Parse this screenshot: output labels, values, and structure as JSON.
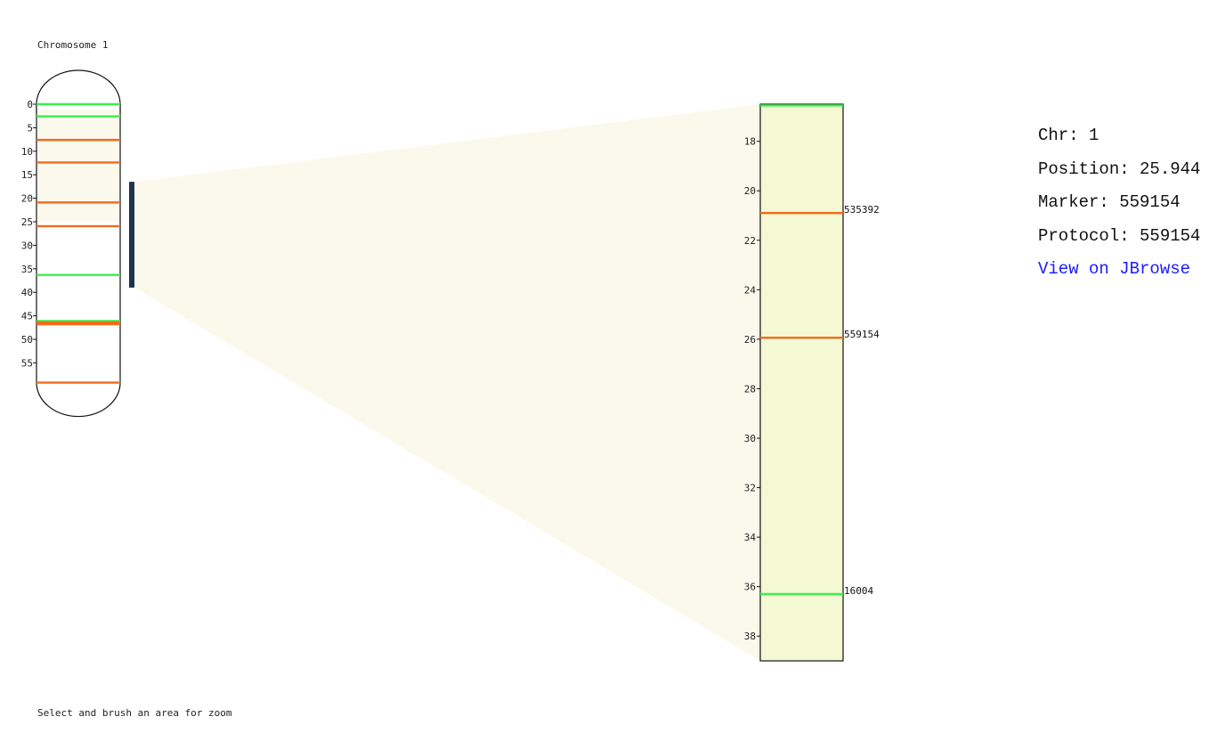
{
  "chromosome": {
    "title": "Chromosome 1"
  },
  "caption": "Select and brush an area for zoom",
  "info": {
    "chr": "Chr: 1",
    "position": "Position: 25.944",
    "marker": "Marker: 559154",
    "protocol": "Protocol: 559154",
    "link": "View on JBrowse"
  },
  "colors": {
    "green": "#39f04a",
    "orange": "#f26b1d",
    "brush": "#1e3350",
    "selection_fill": "#fbf9ec",
    "zoom_fill": "#f4f8d3"
  },
  "overview": {
    "ticks": [
      0,
      5,
      10,
      15,
      20,
      25,
      30,
      35,
      40,
      45,
      50,
      55
    ],
    "markers": [
      {
        "pos": 0.0,
        "color": "green"
      },
      {
        "pos": 2.6,
        "color": "green"
      },
      {
        "pos": 7.6,
        "color": "orange"
      },
      {
        "pos": 12.4,
        "color": "orange"
      },
      {
        "pos": 20.9,
        "color": "orange"
      },
      {
        "pos": 25.94,
        "color": "orange"
      },
      {
        "pos": 36.3,
        "color": "green"
      },
      {
        "pos": 46.1,
        "color": "green"
      },
      {
        "pos": 46.4,
        "color": "orange"
      },
      {
        "pos": 46.8,
        "color": "orange"
      },
      {
        "pos": 59.2,
        "color": "orange"
      }
    ],
    "selection": [
      1.2,
      25.0
    ],
    "brush": [
      16.5,
      39.0
    ]
  },
  "zoom": {
    "domain": [
      16.5,
      39.0
    ],
    "ticks": [
      18,
      20,
      22,
      24,
      26,
      28,
      30,
      32,
      34,
      36,
      38
    ],
    "markers": [
      {
        "pos": 16.55,
        "color": "green",
        "label": ""
      },
      {
        "pos": 20.9,
        "color": "orange",
        "label": "535392"
      },
      {
        "pos": 25.94,
        "color": "orange",
        "label": "559154"
      },
      {
        "pos": 36.3,
        "color": "green",
        "label": "16004"
      }
    ]
  }
}
